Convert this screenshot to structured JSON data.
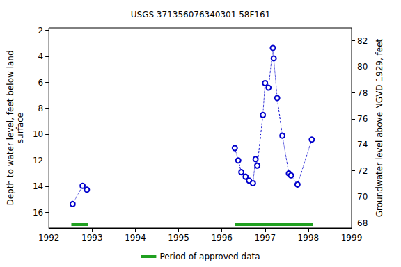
{
  "chart_data": {
    "type": "line",
    "title": "USGS 371356076340301 58F161",
    "y_label": "Depth to water level, feet below land\nsurface",
    "y2_label": "Groundwater level above NGVD 1929, feet",
    "x": [
      1992.55,
      1992.78,
      1992.88,
      null,
      1996.3,
      1996.38,
      1996.45,
      1996.55,
      1996.63,
      1996.72,
      1996.78,
      1996.82,
      1996.95,
      1997.0,
      1997.08,
      1997.18,
      1997.2,
      1997.28,
      1997.4,
      1997.55,
      1997.6,
      1997.75,
      1998.08
    ],
    "series": [
      {
        "name": "Depth to water level",
        "color": "#0000cc",
        "marker": "circle",
        "line_style": "dotted",
        "values": [
          15.35,
          13.95,
          14.25,
          null,
          11.05,
          12.0,
          12.9,
          13.25,
          13.55,
          13.75,
          11.9,
          12.4,
          8.5,
          6.05,
          6.4,
          3.35,
          4.15,
          7.2,
          10.1,
          13.0,
          13.15,
          13.85,
          10.4
        ]
      }
    ],
    "approved_periods": {
      "name": "Period of approved data",
      "color": "#20a020",
      "ranges": [
        [
          1992.52,
          1992.9
        ],
        [
          1996.3,
          1998.1
        ]
      ]
    },
    "xlim": [
      1992,
      1999
    ],
    "xticks": [
      1992,
      1993,
      1994,
      1995,
      1996,
      1997,
      1998,
      1999
    ],
    "ylim": [
      17.2,
      1.8
    ],
    "yticks": [
      2,
      4,
      6,
      8,
      10,
      12,
      14,
      16
    ],
    "y2lim": [
      67.6,
      83.0
    ],
    "y2ticks": [
      68,
      70,
      72,
      74,
      76,
      78,
      80,
      82
    ],
    "grid": false,
    "legend": "bottom"
  }
}
